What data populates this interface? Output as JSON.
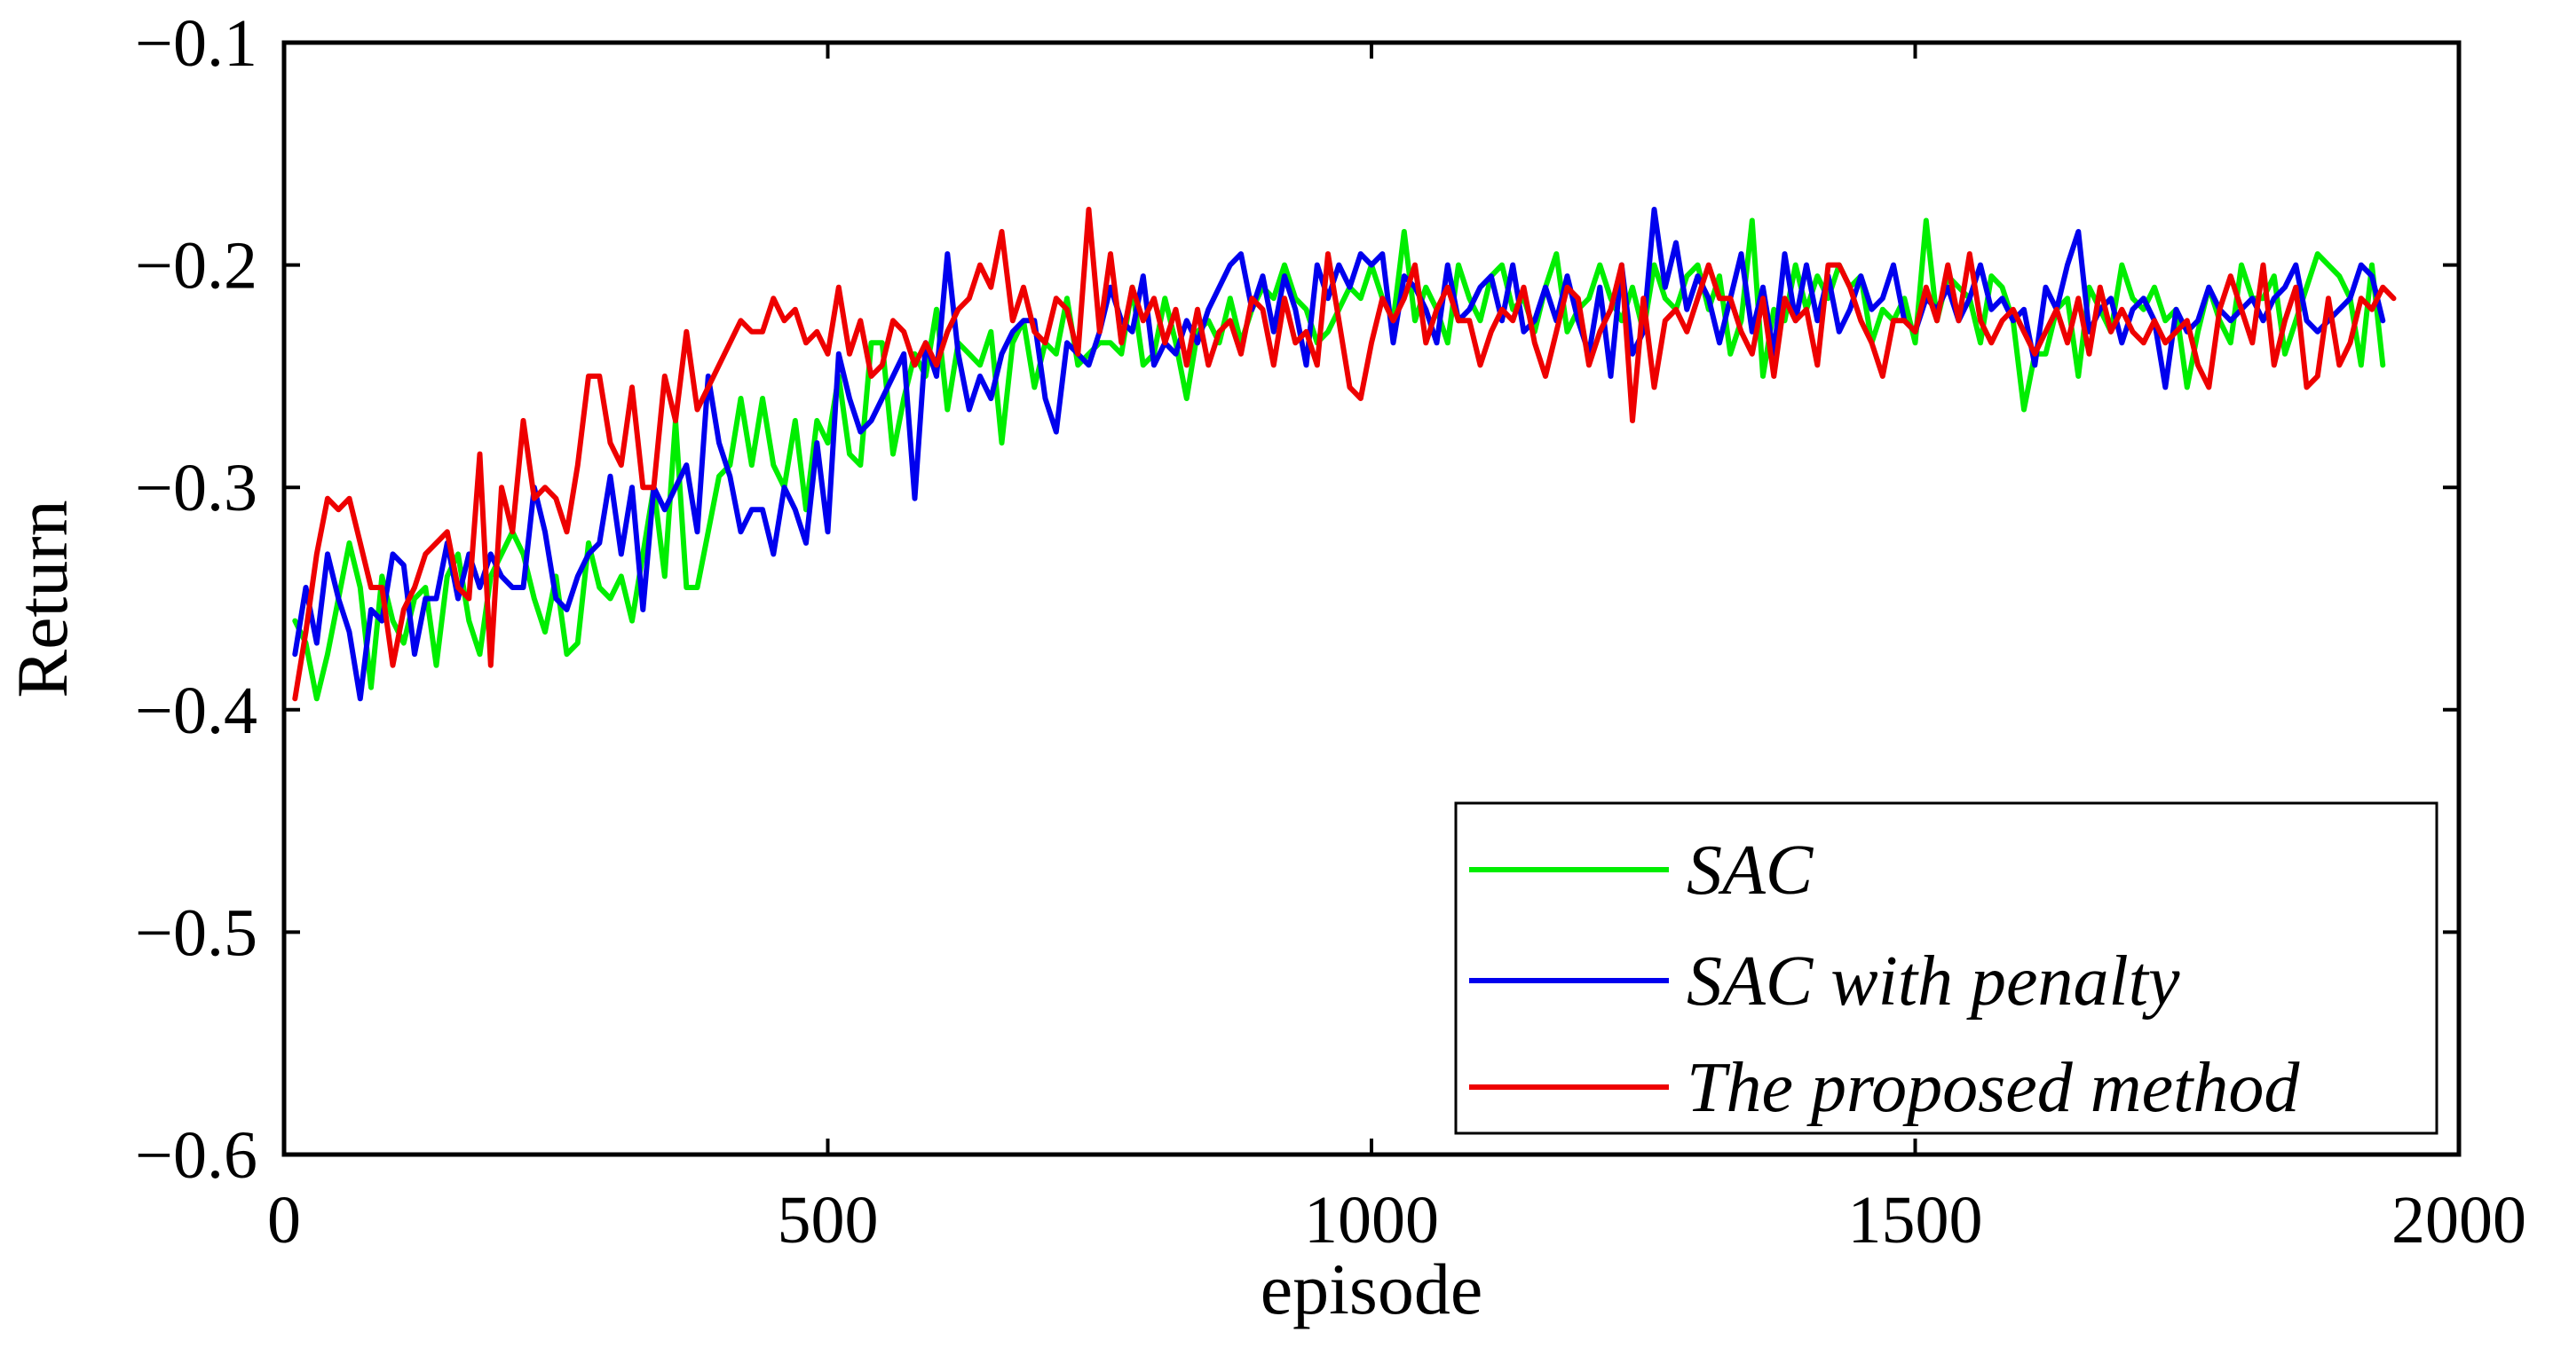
{
  "chart_data": {
    "type": "line",
    "title": "",
    "xlabel": "episode",
    "ylabel": "Return",
    "xlim": [
      0,
      2000
    ],
    "ylim": [
      -0.6,
      -0.1
    ],
    "xticks": [
      0,
      500,
      1000,
      1500,
      2000
    ],
    "xtick_labels": [
      "0",
      "500",
      "1000",
      "1500",
      "2000"
    ],
    "yticks": [
      -0.1,
      -0.2,
      -0.3,
      -0.4,
      -0.5,
      -0.6
    ],
    "ytick_labels": [
      "−0.1",
      "−0.2",
      "−0.3",
      "−0.4",
      "−0.5",
      "−0.6"
    ],
    "grid": false,
    "legend_position": "bottom-right",
    "x_step": 10,
    "series": [
      {
        "name": "SAC",
        "color": "#00ee00",
        "values": [
          -0.36,
          -0.37,
          -0.395,
          -0.375,
          -0.35,
          -0.325,
          -0.345,
          -0.39,
          -0.34,
          -0.36,
          -0.37,
          -0.35,
          -0.345,
          -0.38,
          -0.34,
          -0.33,
          -0.36,
          -0.375,
          -0.34,
          -0.33,
          -0.32,
          -0.33,
          -0.35,
          -0.365,
          -0.34,
          -0.375,
          -0.37,
          -0.325,
          -0.345,
          -0.35,
          -0.34,
          -0.36,
          -0.33,
          -0.3,
          -0.34,
          -0.27,
          -0.345,
          -0.345,
          -0.32,
          -0.295,
          -0.29,
          -0.26,
          -0.29,
          -0.26,
          -0.29,
          -0.3,
          -0.27,
          -0.31,
          -0.27,
          -0.28,
          -0.25,
          -0.285,
          -0.29,
          -0.235,
          -0.235,
          -0.285,
          -0.26,
          -0.24,
          -0.25,
          -0.22,
          -0.265,
          -0.235,
          -0.24,
          -0.245,
          -0.23,
          -0.28,
          -0.235,
          -0.225,
          -0.255,
          -0.235,
          -0.24,
          -0.215,
          -0.245,
          -0.24,
          -0.235,
          -0.235,
          -0.24,
          -0.21,
          -0.245,
          -0.24,
          -0.215,
          -0.235,
          -0.26,
          -0.23,
          -0.225,
          -0.235,
          -0.215,
          -0.235,
          -0.22,
          -0.21,
          -0.215,
          -0.2,
          -0.215,
          -0.22,
          -0.235,
          -0.23,
          -0.22,
          -0.21,
          -0.215,
          -0.2,
          -0.215,
          -0.225,
          -0.185,
          -0.225,
          -0.21,
          -0.22,
          -0.235,
          -0.2,
          -0.215,
          -0.225,
          -0.205,
          -0.2,
          -0.22,
          -0.215,
          -0.23,
          -0.21,
          -0.195,
          -0.23,
          -0.22,
          -0.215,
          -0.2,
          -0.215,
          -0.225,
          -0.21,
          -0.23,
          -0.2,
          -0.215,
          -0.22,
          -0.205,
          -0.2,
          -0.22,
          -0.205,
          -0.24,
          -0.225,
          -0.18,
          -0.25,
          -0.22,
          -0.225,
          -0.2,
          -0.22,
          -0.205,
          -0.215,
          -0.2,
          -0.21,
          -0.205,
          -0.235,
          -0.22,
          -0.225,
          -0.215,
          -0.235,
          -0.18,
          -0.225,
          -0.205,
          -0.21,
          -0.215,
          -0.235,
          -0.205,
          -0.21,
          -0.225,
          -0.265,
          -0.24,
          -0.24,
          -0.22,
          -0.215,
          -0.25,
          -0.21,
          -0.22,
          -0.23,
          -0.2,
          -0.215,
          -0.22,
          -0.21,
          -0.225,
          -0.22,
          -0.255,
          -0.23,
          -0.21,
          -0.225,
          -0.235,
          -0.2,
          -0.215,
          -0.215,
          -0.205,
          -0.24,
          -0.225,
          -0.21,
          -0.195,
          -0.2,
          -0.205,
          -0.215,
          -0.245,
          -0.2,
          -0.245
        ]
      },
      {
        "name": "SAC with penalty",
        "color": "#0000ee",
        "values": [
          -0.375,
          -0.345,
          -0.37,
          -0.33,
          -0.35,
          -0.365,
          -0.395,
          -0.355,
          -0.36,
          -0.33,
          -0.335,
          -0.375,
          -0.35,
          -0.35,
          -0.325,
          -0.35,
          -0.33,
          -0.345,
          -0.33,
          -0.34,
          -0.345,
          -0.345,
          -0.3,
          -0.32,
          -0.35,
          -0.355,
          -0.34,
          -0.33,
          -0.325,
          -0.295,
          -0.33,
          -0.3,
          -0.355,
          -0.3,
          -0.31,
          -0.3,
          -0.29,
          -0.32,
          -0.25,
          -0.28,
          -0.295,
          -0.32,
          -0.31,
          -0.31,
          -0.33,
          -0.3,
          -0.31,
          -0.325,
          -0.28,
          -0.32,
          -0.24,
          -0.26,
          -0.275,
          -0.27,
          -0.26,
          -0.25,
          -0.24,
          -0.305,
          -0.235,
          -0.25,
          -0.195,
          -0.24,
          -0.265,
          -0.25,
          -0.26,
          -0.24,
          -0.23,
          -0.225,
          -0.225,
          -0.26,
          -0.275,
          -0.235,
          -0.24,
          -0.245,
          -0.23,
          -0.21,
          -0.225,
          -0.23,
          -0.205,
          -0.245,
          -0.235,
          -0.24,
          -0.225,
          -0.235,
          -0.22,
          -0.21,
          -0.2,
          -0.195,
          -0.22,
          -0.205,
          -0.23,
          -0.205,
          -0.22,
          -0.245,
          -0.2,
          -0.215,
          -0.2,
          -0.21,
          -0.195,
          -0.2,
          -0.195,
          -0.235,
          -0.205,
          -0.21,
          -0.22,
          -0.235,
          -0.2,
          -0.225,
          -0.22,
          -0.21,
          -0.205,
          -0.225,
          -0.2,
          -0.23,
          -0.225,
          -0.21,
          -0.225,
          -0.205,
          -0.225,
          -0.24,
          -0.21,
          -0.25,
          -0.2,
          -0.24,
          -0.23,
          -0.175,
          -0.21,
          -0.19,
          -0.22,
          -0.205,
          -0.215,
          -0.235,
          -0.215,
          -0.195,
          -0.23,
          -0.21,
          -0.24,
          -0.195,
          -0.225,
          -0.2,
          -0.225,
          -0.205,
          -0.23,
          -0.22,
          -0.205,
          -0.22,
          -0.215,
          -0.2,
          -0.225,
          -0.23,
          -0.215,
          -0.22,
          -0.21,
          -0.225,
          -0.215,
          -0.2,
          -0.22,
          -0.215,
          -0.225,
          -0.22,
          -0.245,
          -0.21,
          -0.22,
          -0.2,
          -0.185,
          -0.23,
          -0.22,
          -0.215,
          -0.235,
          -0.22,
          -0.215,
          -0.225,
          -0.255,
          -0.22,
          -0.23,
          -0.225,
          -0.21,
          -0.22,
          -0.225,
          -0.22,
          -0.215,
          -0.225,
          -0.215,
          -0.21,
          -0.2,
          -0.225,
          -0.23,
          -0.225,
          -0.22,
          -0.215,
          -0.2,
          -0.205,
          -0.225
        ]
      },
      {
        "name": "The proposed method",
        "color": "#ee0000",
        "values": [
          -0.395,
          -0.365,
          -0.33,
          -0.305,
          -0.31,
          -0.305,
          -0.325,
          -0.345,
          -0.345,
          -0.38,
          -0.355,
          -0.345,
          -0.33,
          -0.325,
          -0.32,
          -0.345,
          -0.35,
          -0.285,
          -0.38,
          -0.3,
          -0.32,
          -0.27,
          -0.305,
          -0.3,
          -0.305,
          -0.32,
          -0.29,
          -0.25,
          -0.25,
          -0.28,
          -0.29,
          -0.255,
          -0.3,
          -0.3,
          -0.25,
          -0.27,
          -0.23,
          -0.265,
          -0.255,
          -0.245,
          -0.235,
          -0.225,
          -0.23,
          -0.23,
          -0.215,
          -0.225,
          -0.22,
          -0.235,
          -0.23,
          -0.24,
          -0.21,
          -0.24,
          -0.225,
          -0.25,
          -0.245,
          -0.225,
          -0.23,
          -0.245,
          -0.235,
          -0.245,
          -0.23,
          -0.22,
          -0.215,
          -0.2,
          -0.21,
          -0.185,
          -0.225,
          -0.21,
          -0.23,
          -0.235,
          -0.215,
          -0.22,
          -0.24,
          -0.175,
          -0.23,
          -0.195,
          -0.235,
          -0.21,
          -0.225,
          -0.215,
          -0.235,
          -0.22,
          -0.245,
          -0.22,
          -0.245,
          -0.23,
          -0.225,
          -0.24,
          -0.215,
          -0.22,
          -0.245,
          -0.215,
          -0.235,
          -0.23,
          -0.245,
          -0.195,
          -0.225,
          -0.255,
          -0.26,
          -0.235,
          -0.215,
          -0.225,
          -0.215,
          -0.2,
          -0.235,
          -0.22,
          -0.21,
          -0.225,
          -0.225,
          -0.245,
          -0.23,
          -0.22,
          -0.225,
          -0.21,
          -0.235,
          -0.25,
          -0.23,
          -0.21,
          -0.215,
          -0.245,
          -0.23,
          -0.22,
          -0.2,
          -0.27,
          -0.215,
          -0.255,
          -0.225,
          -0.22,
          -0.23,
          -0.215,
          -0.2,
          -0.215,
          -0.215,
          -0.23,
          -0.24,
          -0.215,
          -0.25,
          -0.215,
          -0.225,
          -0.22,
          -0.245,
          -0.2,
          -0.2,
          -0.21,
          -0.225,
          -0.235,
          -0.25,
          -0.225,
          -0.225,
          -0.23,
          -0.21,
          -0.225,
          -0.2,
          -0.225,
          -0.195,
          -0.225,
          -0.235,
          -0.225,
          -0.22,
          -0.23,
          -0.24,
          -0.23,
          -0.22,
          -0.235,
          -0.215,
          -0.24,
          -0.21,
          -0.23,
          -0.22,
          -0.23,
          -0.235,
          -0.225,
          -0.235,
          -0.23,
          -0.225,
          -0.245,
          -0.255,
          -0.22,
          -0.205,
          -0.22,
          -0.235,
          -0.2,
          -0.245,
          -0.225,
          -0.21,
          -0.255,
          -0.25,
          -0.215,
          -0.245,
          -0.235,
          -0.215,
          -0.22,
          -0.21,
          -0.215
        ]
      }
    ]
  }
}
